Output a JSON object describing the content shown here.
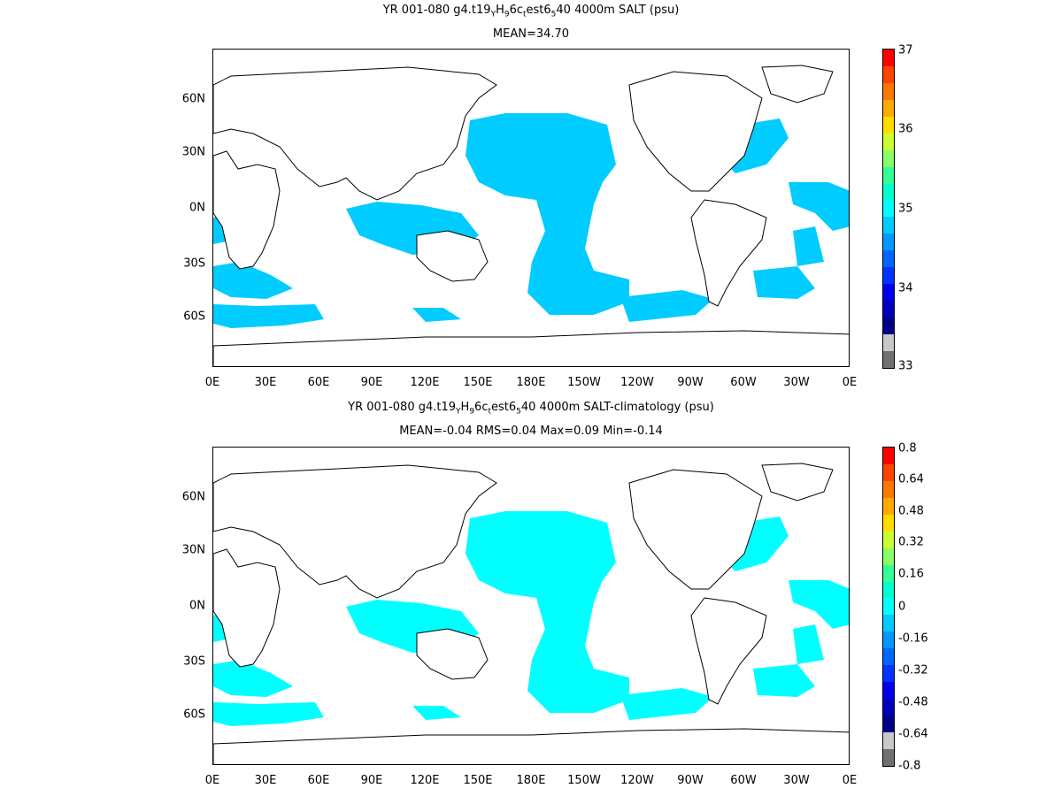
{
  "panels": [
    {
      "title": "YR 001-080 g4.t19_YH_96c_test6_5 40 4000m SALT (psu)",
      "title_parts": [
        "YR 001-080 g4.t19",
        "Y",
        "H",
        "9",
        "6c",
        "t",
        "est6",
        "5",
        "40 4000m SALT (psu)"
      ],
      "stats": "MEAN=34.70",
      "fill_color": "#00ccff",
      "colorbar_labels": [
        "37",
        "36",
        "35",
        "34",
        "33"
      ]
    },
    {
      "title": "YR 001-080 g4.t19_YH_96c_test6_5 40 4000m SALT-climatology (psu)",
      "title_parts": [
        "YR 001-080 g4.t19",
        "Y",
        "H",
        "9",
        "6c",
        "t",
        "est6",
        "5",
        "40 4000m SALT-climatology (psu)"
      ],
      "stats": "MEAN=-0.04   RMS=0.04   Max=0.09   Min=-0.14",
      "fill_color": "#00ffff",
      "colorbar_labels": [
        "0.8",
        "0.64",
        "0.48",
        "0.32",
        "0.16",
        "0",
        "-0.16",
        "-0.32",
        "-0.48",
        "-0.64",
        "-0.8"
      ]
    }
  ],
  "lat_labels": [
    "60N",
    "30N",
    "0N",
    "30S",
    "60S"
  ],
  "lon_labels": [
    "0E",
    "30E",
    "60E",
    "90E",
    "120E",
    "150E",
    "180E",
    "150W",
    "120W",
    "90W",
    "60W",
    "30W",
    "0E"
  ],
  "colorbar_colors": [
    "#ff0000",
    "#ff4400",
    "#ff7700",
    "#ffaa00",
    "#ffdd00",
    "#ccff33",
    "#88ff66",
    "#33ff99",
    "#00ffcc",
    "#00ffff",
    "#00ccff",
    "#0099ff",
    "#0066ff",
    "#0033ff",
    "#0000ee",
    "#0000bb",
    "#000088",
    "#c8c8c8",
    "#707070"
  ]
}
